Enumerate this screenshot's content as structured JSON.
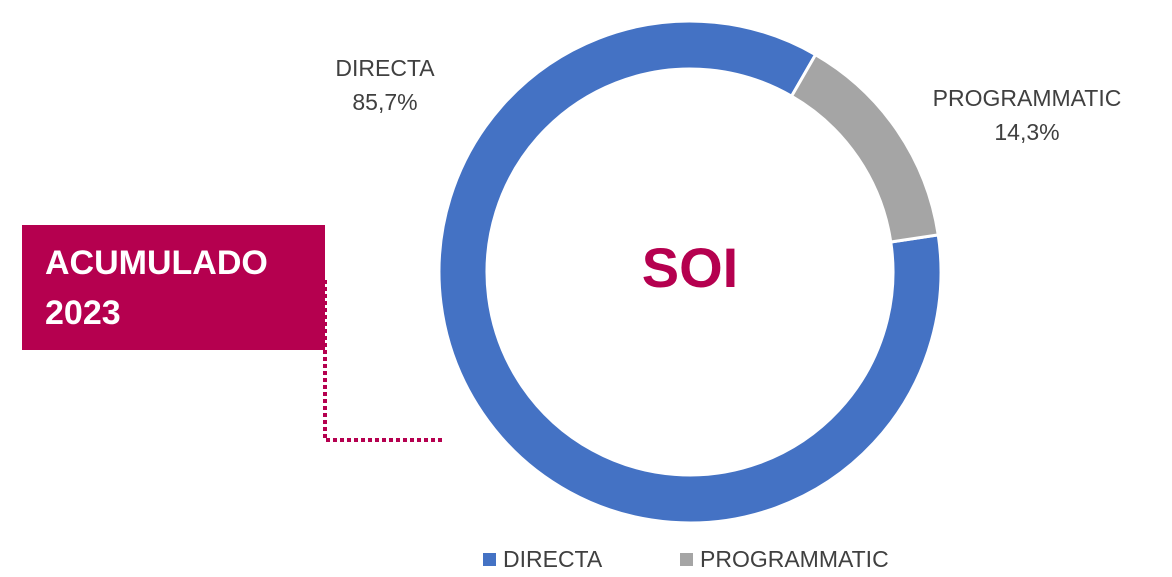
{
  "chart_data": {
    "type": "donut",
    "categories": [
      "DIRECTA",
      "PROGRAMMATIC"
    ],
    "values": [
      85.7,
      14.3
    ],
    "value_labels": [
      "85,7%",
      "14,3%"
    ],
    "colors": [
      "#4472c4",
      "#a5a5a5"
    ],
    "center_text": "SOI",
    "annotation": [
      "ACUMULADO",
      "2023"
    ],
    "legend": "bottom"
  }
}
